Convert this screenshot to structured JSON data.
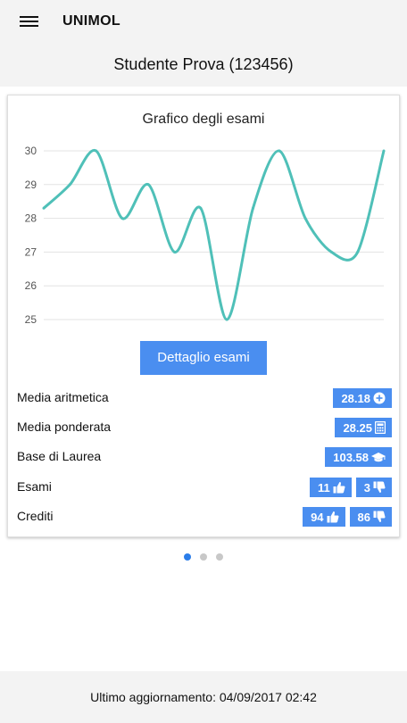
{
  "header": {
    "app_title": "UNIMOL",
    "student": "Studente Prova (123456)"
  },
  "card": {
    "title": "Grafico degli esami",
    "button_label": "Dettaglio esami",
    "stats": [
      {
        "label": "Media aritmetica",
        "badges": [
          {
            "value": "28.18",
            "icon": "plus-circle-icon"
          }
        ]
      },
      {
        "label": "Media ponderata",
        "badges": [
          {
            "value": "28.25",
            "icon": "calculator-icon"
          }
        ]
      },
      {
        "label": "Base di Laurea",
        "badges": [
          {
            "value": "103.58",
            "icon": "graduation-cap-icon"
          }
        ]
      },
      {
        "label": "Esami",
        "badges": [
          {
            "value": "11",
            "icon": "thumbs-up-icon"
          },
          {
            "value": "3",
            "icon": "thumbs-down-icon"
          }
        ]
      },
      {
        "label": "Crediti",
        "badges": [
          {
            "value": "94",
            "icon": "thumbs-up-icon"
          },
          {
            "value": "86",
            "icon": "thumbs-down-icon"
          }
        ]
      }
    ]
  },
  "chart_data": {
    "type": "line",
    "x": [
      1,
      2,
      3,
      4,
      5,
      6,
      7,
      8,
      9,
      10,
      11,
      12,
      13,
      14
    ],
    "series": [
      {
        "values": [
          28.3,
          29,
          30,
          28,
          29,
          27,
          28.3,
          25,
          28.3,
          30,
          28,
          27,
          27,
          30
        ],
        "color": "#4fc0b8"
      }
    ],
    "yticks": [
      25,
      26,
      27,
      28,
      29,
      30
    ],
    "ylim": [
      25,
      30
    ],
    "grid": true
  },
  "pager": {
    "count": 3,
    "active": 0
  },
  "footer": {
    "text": "Ultimo aggiornamento: 04/09/2017 02:42"
  },
  "colors": {
    "accent": "#4a8ef0",
    "line": "#4fc0b8",
    "dot_active": "#2b7de9"
  }
}
